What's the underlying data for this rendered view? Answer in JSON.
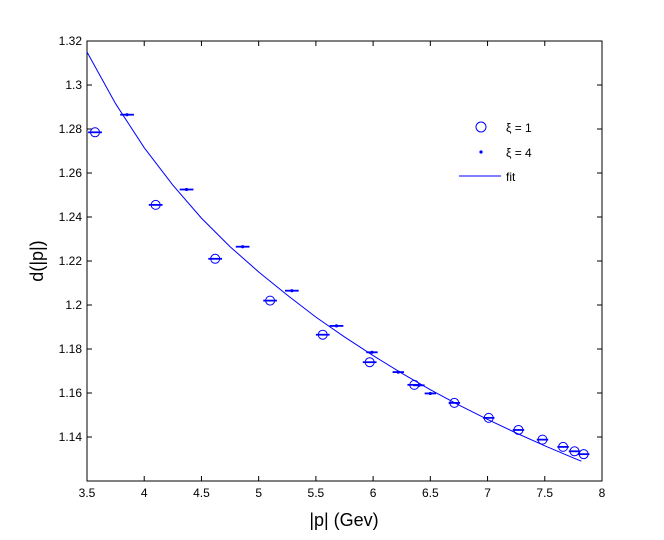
{
  "chart_data": {
    "type": "scatter",
    "title": "",
    "xlabel": "|p| (Gev)",
    "ylabel": "d(|p|)",
    "xlim": [
      3.5,
      8
    ],
    "ylim": [
      1.12,
      1.32
    ],
    "xticks": [
      "3.5",
      "4",
      "4.5",
      "5",
      "5.5",
      "6",
      "6.5",
      "7",
      "7.5",
      "8"
    ],
    "yticks": [
      "1.14",
      "1.16",
      "1.18",
      "1.2",
      "1.22",
      "1.24",
      "1.26",
      "1.28",
      "1.3",
      "1.32"
    ],
    "grid": false,
    "legend_position": "top-right",
    "color": "#0000ff",
    "series": [
      {
        "name": "ξ = 1",
        "marker": "circle",
        "x": [
          3.57,
          4.1,
          4.62,
          5.1,
          5.56,
          5.97,
          6.36,
          6.71,
          7.01,
          7.27,
          7.48,
          7.66,
          7.76,
          7.84
        ],
        "y": [
          1.2785,
          1.2455,
          1.221,
          1.202,
          1.1865,
          1.174,
          1.1637,
          1.1555,
          1.1487,
          1.1432,
          1.1388,
          1.1355,
          1.1335,
          1.1322
        ],
        "xerr": [
          0.06,
          0.06,
          0.06,
          0.06,
          0.06,
          0.06,
          0.06,
          0.05,
          0.05,
          0.05,
          0.05,
          0.05,
          0.05,
          0.05
        ]
      },
      {
        "name": "ξ = 4",
        "marker": "dot",
        "x": [
          3.85,
          4.37,
          4.86,
          5.29,
          5.68,
          5.99,
          6.22,
          6.4,
          6.5
        ],
        "y": [
          1.2865,
          1.2525,
          1.2265,
          1.2065,
          1.1905,
          1.1785,
          1.1695,
          1.1635,
          1.1598
        ],
        "xerr": [
          0.06,
          0.06,
          0.06,
          0.06,
          0.06,
          0.05,
          0.05,
          0.05,
          0.05
        ]
      },
      {
        "name": "fit",
        "marker": "line",
        "x": [
          3.5,
          3.75,
          4.0,
          4.25,
          4.5,
          4.75,
          5.0,
          5.25,
          5.5,
          5.75,
          6.0,
          6.25,
          6.5,
          6.75,
          7.0,
          7.25,
          7.5,
          7.75,
          7.82
        ],
        "y": [
          1.315,
          1.2915,
          1.2715,
          1.2545,
          1.2395,
          1.2265,
          1.215,
          1.2045,
          1.1945,
          1.1855,
          1.177,
          1.169,
          1.1615,
          1.1545,
          1.148,
          1.1418,
          1.136,
          1.1305,
          1.129
        ]
      }
    ]
  }
}
